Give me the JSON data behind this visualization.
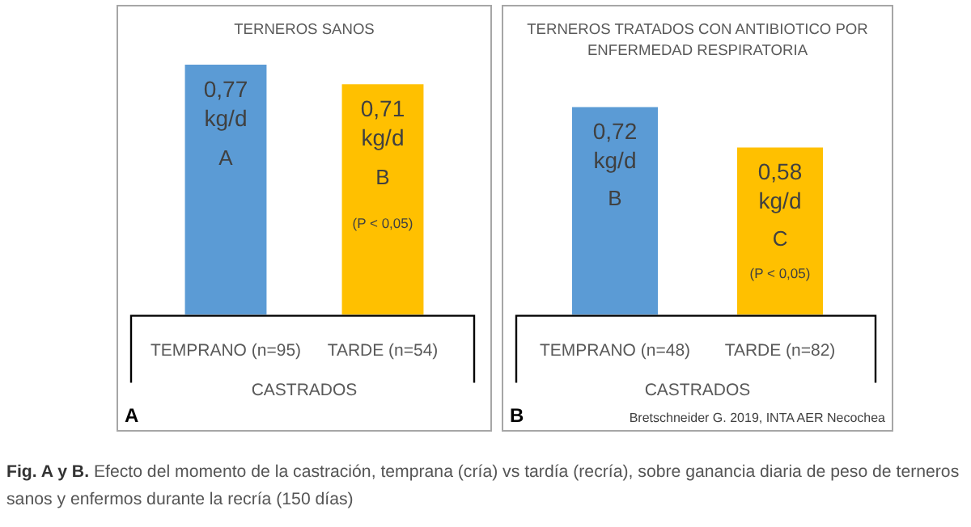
{
  "chart_data": [
    {
      "type": "bar",
      "title": "TERNEROS SANOS",
      "categories": [
        "TEMPRANO (n=95)",
        "TARDE (n=54)"
      ],
      "values": [
        0.77,
        0.71
      ],
      "colors": [
        "#5b9bd5",
        "#ffc000"
      ],
      "value_labels": [
        "0,77 kg/d",
        "0,71 kg/d"
      ],
      "xlabel": "CASTRADOS",
      "annotations": [
        "A",
        "B",
        "(P < 0,05)",
        "A"
      ]
    },
    {
      "type": "bar",
      "title": "TERNEROS TRATADOS CON ANTIBIOTICO POR ENFERMEDAD RESPIRATORIA",
      "categories": [
        "TEMPRANO (n=48)",
        "TARDE (n=82)"
      ],
      "values": [
        0.72,
        0.58
      ],
      "colors": [
        "#5b9bd5",
        "#ffc000"
      ],
      "value_labels": [
        "0,72 kg/d",
        "0,58 kg/d"
      ],
      "xlabel": "CASTRADOS",
      "annotations": [
        "B",
        "C",
        "(P < 0,05)",
        "B",
        "Bretschneider G. 2019, INTA AER Necochea",
        "Fig. A y B. Efecto del momento de la castración, temprana (cría) vs tardía (recría), sobre   ganancia diaria de peso de terneros sanos y enfermos durante la recría (150 días)"
      ]
    }
  ]
}
